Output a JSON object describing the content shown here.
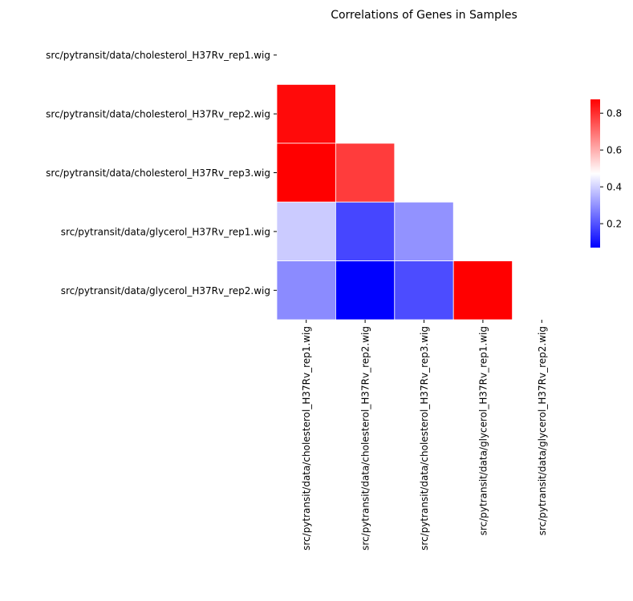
{
  "chart_data": {
    "type": "heatmap",
    "title": "Correlations of Genes in Samples",
    "xlabel": "",
    "ylabel": "",
    "rows": [
      "src/pytransit/data/cholesterol_H37Rv_rep1.wig",
      "src/pytransit/data/cholesterol_H37Rv_rep2.wig",
      "src/pytransit/data/cholesterol_H37Rv_rep3.wig",
      "src/pytransit/data/glycerol_H37Rv_rep1.wig",
      "src/pytransit/data/glycerol_H37Rv_rep2.wig"
    ],
    "columns": [
      "src/pytransit/data/cholesterol_H37Rv_rep1.wig",
      "src/pytransit/data/cholesterol_H37Rv_rep2.wig",
      "src/pytransit/data/cholesterol_H37Rv_rep3.wig",
      "src/pytransit/data/glycerol_H37Rv_rep1.wig",
      "src/pytransit/data/glycerol_H37Rv_rep2.wig"
    ],
    "values": [
      [
        null,
        null,
        null,
        null,
        null
      ],
      [
        0.86,
        null,
        null,
        null,
        null
      ],
      [
        0.875,
        0.78,
        null,
        null,
        null
      ],
      [
        0.39,
        0.18,
        0.3,
        null,
        null
      ],
      [
        0.29,
        0.07,
        0.19,
        0.875,
        null
      ]
    ],
    "mask": "upper-triangle-including-diagonal",
    "colormap": {
      "low": "#0000ff",
      "mid": "#ffffff",
      "high": "#ff0000"
    },
    "vmin": 0.07,
    "vmax": 0.875,
    "colorbar": {
      "ticks": [
        0.2,
        0.4,
        0.6,
        0.8
      ],
      "tick_labels": [
        "0.2",
        "0.4",
        "0.6",
        "0.8"
      ]
    }
  }
}
